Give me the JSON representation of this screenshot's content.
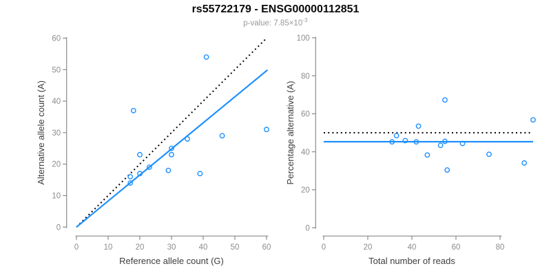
{
  "header": {
    "title": "rs55722179 - ENSG00000112851",
    "subtitle_prefix": "p-value: 7.85×10",
    "subtitle_exponent": "-3"
  },
  "colors": {
    "accent_blue": "#1E90FF",
    "identity_black": "#000000",
    "axis_line": "#8A8A8A",
    "tick_label": "#8c8c8c",
    "axis_title": "#3d3d3d",
    "title": "#0a0a0a",
    "subtitle": "#999999",
    "background": "#ffffff"
  },
  "chart_data": [
    {
      "type": "scatter",
      "name": "allele-counts-scatter",
      "xlabel": "Reference allele count (G)",
      "ylabel": "Alternative allele count (A)",
      "xlim": [
        0,
        60
      ],
      "ylim": [
        0,
        60
      ],
      "xticks": [
        0,
        10,
        20,
        30,
        40,
        50,
        60
      ],
      "yticks": [
        0,
        10,
        20,
        30,
        40,
        50,
        60
      ],
      "grid": false,
      "points": [
        [
          17,
          14
        ],
        [
          17,
          16
        ],
        [
          18,
          37
        ],
        [
          20,
          17
        ],
        [
          20,
          23
        ],
        [
          23,
          19
        ],
        [
          29,
          18
        ],
        [
          30,
          23
        ],
        [
          30,
          25
        ],
        [
          35,
          28
        ],
        [
          39,
          17
        ],
        [
          41,
          54
        ],
        [
          46,
          29
        ],
        [
          60,
          31
        ]
      ],
      "lines": [
        {
          "name": "identity-line",
          "from": [
            0,
            0
          ],
          "to": [
            60,
            60
          ],
          "style": "dotted",
          "color": "#000000"
        },
        {
          "name": "fit-line",
          "from": [
            0,
            0
          ],
          "to": [
            60.3,
            49.9
          ],
          "style": "solid",
          "color": "#1E90FF"
        }
      ]
    },
    {
      "type": "scatter",
      "name": "percentage-vs-coverage-scatter",
      "xlabel": "Total number of reads",
      "ylabel": "Percentage alternative (A)",
      "xlim": [
        0,
        80
      ],
      "ylim": [
        0,
        100
      ],
      "xticks": [
        0,
        20,
        40,
        60,
        80
      ],
      "yticks": [
        0,
        20,
        40,
        60,
        80,
        100
      ],
      "grid": false,
      "points": [
        [
          31,
          45.2
        ],
        [
          33,
          48.5
        ],
        [
          37,
          45.9
        ],
        [
          42,
          45.2
        ],
        [
          43,
          53.5
        ],
        [
          47,
          38.3
        ],
        [
          53,
          43.4
        ],
        [
          55,
          45.5
        ],
        [
          55,
          67.3
        ],
        [
          56,
          30.4
        ],
        [
          63,
          44.4
        ],
        [
          75,
          38.7
        ],
        [
          91,
          34.1
        ],
        [
          95,
          56.8
        ]
      ],
      "lines": [
        {
          "name": "reference-50pct-line",
          "from": [
            0,
            50
          ],
          "to": [
            94.5,
            50
          ],
          "style": "dotted",
          "color": "#000000"
        },
        {
          "name": "fit-line",
          "from": [
            0,
            45.3
          ],
          "to": [
            95,
            45.3
          ],
          "style": "solid",
          "color": "#1E90FF"
        }
      ]
    }
  ]
}
